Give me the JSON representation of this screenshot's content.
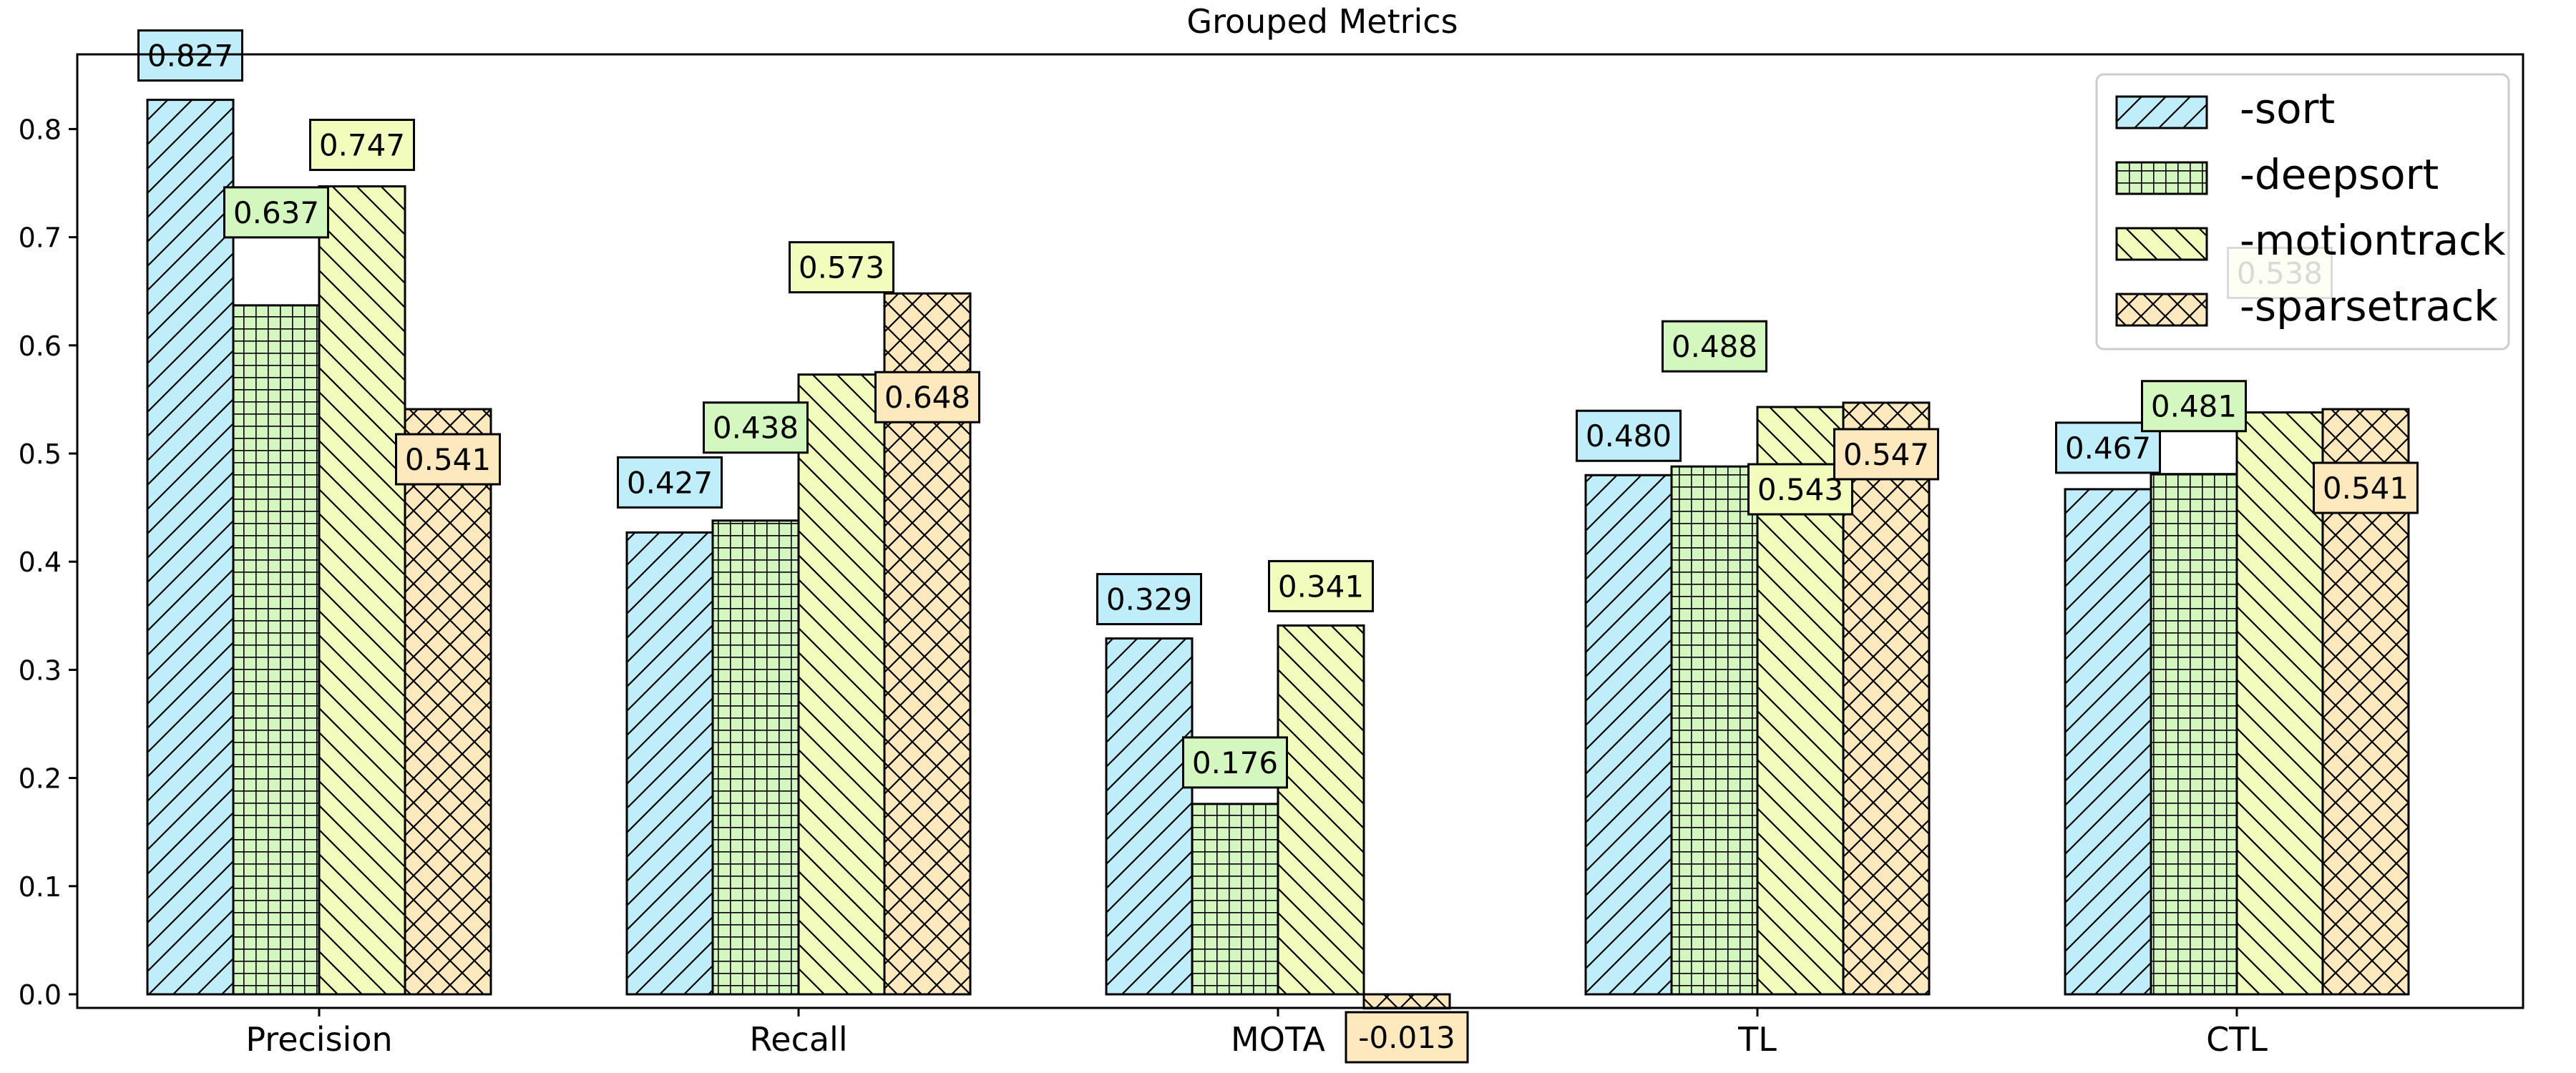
{
  "chart_data": {
    "type": "bar",
    "title": "Grouped Metrics",
    "xlabel": "",
    "ylabel": "",
    "categories": [
      "Precision",
      "Recall",
      "MOTA",
      "TL",
      "CTL"
    ],
    "ylim": [
      -0.013,
      0.87
    ],
    "yticks": [
      "0.0",
      "0.1",
      "0.2",
      "0.3",
      "0.4",
      "0.5",
      "0.6",
      "0.7",
      "0.8"
    ],
    "grid": false,
    "legend_position": "top-right",
    "series": [
      {
        "name": "-sort",
        "color": "#bfeefa",
        "hatch": "diagonal-forward",
        "values": [
          0.827,
          0.427,
          0.329,
          0.48,
          0.467
        ],
        "labels": [
          "0.827",
          "0.427",
          "0.329",
          "0.480",
          "0.467"
        ]
      },
      {
        "name": "-deepsort",
        "color": "#d4f7bf",
        "hatch": "grid",
        "values": [
          0.637,
          0.438,
          0.176,
          0.488,
          0.481
        ],
        "labels": [
          "0.637",
          "0.438",
          "0.176",
          "0.488",
          "0.481"
        ]
      },
      {
        "name": "-motiontrack",
        "color": "#f1fcbd",
        "hatch": "diagonal-backward",
        "values": [
          0.747,
          0.573,
          0.341,
          0.543,
          0.538
        ],
        "labels": [
          "0.747",
          "0.573",
          "0.341",
          "0.543",
          "0.538"
        ]
      },
      {
        "name": "-sparsetrack",
        "color": "#fde9bd",
        "hatch": "crosshatch",
        "values": [
          0.541,
          0.648,
          -0.013,
          0.547,
          0.541
        ],
        "labels": [
          "0.541",
          "0.648",
          "-0.013",
          "0.547",
          "0.541"
        ]
      }
    ]
  }
}
